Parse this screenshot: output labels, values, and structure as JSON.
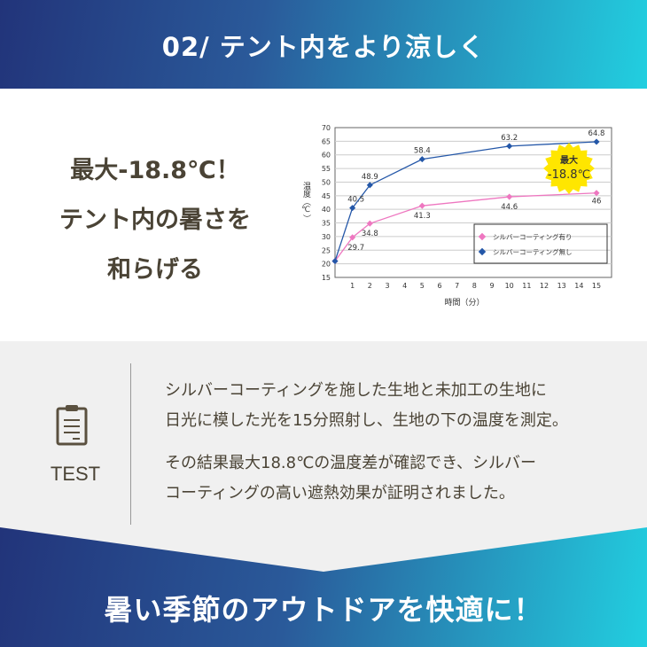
{
  "header": {
    "title": "02/ テント内をより涼しく"
  },
  "lead": {
    "line1": "最大-18.8℃！",
    "line2": "テント内の暑さを",
    "line3": "和らげる"
  },
  "chart_data": {
    "type": "line",
    "xlabel": "時間（分）",
    "ylabel": "温度（℃）",
    "xlim": [
      0,
      15.86
    ],
    "ylim": [
      15,
      70
    ],
    "yticks": [
      15,
      20,
      25,
      30,
      35,
      40,
      45,
      50,
      55,
      60,
      65,
      70
    ],
    "xticks": [
      1,
      2,
      3,
      4,
      5,
      6,
      7,
      8,
      9,
      10,
      11,
      12,
      13,
      14,
      15
    ],
    "grid": true,
    "legend": "bottom-right",
    "badge": {
      "line1": "最大",
      "line2": "-18.8℃",
      "color": "#ffe600"
    },
    "series": [
      {
        "name": "シルバーコーティング有り",
        "color": "#ee77c0",
        "x": [
          0,
          1,
          2,
          5,
          10,
          15
        ],
        "y": [
          21,
          29.7,
          34.8,
          41.3,
          44.6,
          46
        ],
        "labels": [
          "",
          "29.7",
          "34.8",
          "41.3",
          "44.6",
          "46"
        ]
      },
      {
        "name": "シルバーコーティング無し",
        "color": "#2457a8",
        "x": [
          0,
          1,
          2,
          5,
          10,
          15
        ],
        "y": [
          21,
          40.5,
          48.9,
          58.4,
          63.2,
          64.8
        ],
        "labels": [
          "",
          "40.5",
          "48.9",
          "58.4",
          "63.2",
          "64.8"
        ]
      }
    ]
  },
  "test": {
    "label": "TEST",
    "icon": "clipboard-icon",
    "para1_line1": "シルバーコーティングを施した生地と未加工の生地に",
    "para1_line2": "日光に模した光を15分照射し、生地の下の温度を測定。",
    "para2_line1": "その結果最大18.8℃の温度差が確認でき、シルバー",
    "para2_line2": "コーティングの高い遮熱効果が証明されました。"
  },
  "footer": {
    "title": "暑い季節のアウトドアを快適に！"
  },
  "colors": {
    "navy": "#22347a",
    "cyan": "#22cfe0",
    "text": "#4a4335"
  }
}
